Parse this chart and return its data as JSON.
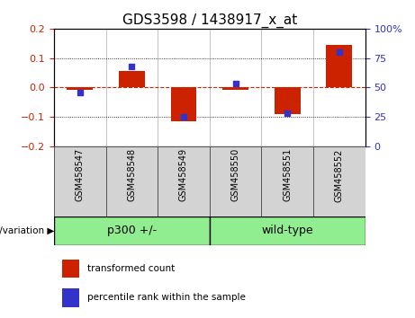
{
  "title": "GDS3598 / 1438917_x_at",
  "samples": [
    "GSM458547",
    "GSM458548",
    "GSM458549",
    "GSM458550",
    "GSM458551",
    "GSM458552"
  ],
  "red_values": [
    -0.008,
    0.055,
    -0.115,
    -0.008,
    -0.092,
    0.145
  ],
  "blue_values_pct": [
    46,
    68,
    25,
    53,
    28,
    80
  ],
  "ylim_left": [
    -0.2,
    0.2
  ],
  "ylim_right": [
    0,
    100
  ],
  "yticks_left": [
    -0.2,
    -0.1,
    0.0,
    0.1,
    0.2
  ],
  "yticks_right": [
    0,
    25,
    50,
    75,
    100
  ],
  "ytick_labels_right": [
    "0",
    "25",
    "50",
    "75",
    "100%"
  ],
  "group1_label": "p300 +/-",
  "group2_label": "wild-type",
  "group_color": "#90EE90",
  "sample_box_color": "#d3d3d3",
  "group_label_left": "genotype/variation",
  "red_color": "#CC2200",
  "blue_color": "#3333CC",
  "bar_width": 0.5,
  "zero_line_color": "#CC2200",
  "background_color": "#ffffff",
  "plot_bg_color": "#ffffff",
  "legend_red_label": "transformed count",
  "legend_blue_label": "percentile rank within the sample",
  "title_fontsize": 11,
  "tick_fontsize": 8,
  "sample_label_fontsize": 7,
  "group_label_fontsize": 9
}
